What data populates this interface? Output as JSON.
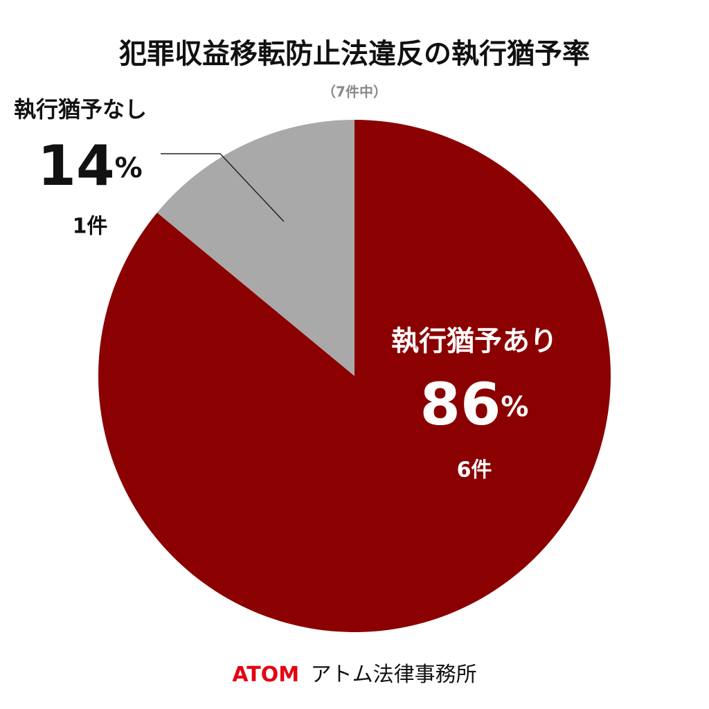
{
  "chart_data": {
    "type": "pie",
    "title": "犯罪収益移転防止法違反の執行猶予率",
    "subtitle": "（7件中）",
    "categories": [
      "執行猶予あり",
      "執行猶予なし"
    ],
    "values": [
      86,
      14
    ],
    "unit": "%",
    "count_labels": [
      "6件",
      "1件"
    ],
    "colors": [
      "#8b0000",
      "#a9a9a9"
    ],
    "footer_logo": "ATOM",
    "footer_name": "アトム法律事務所"
  }
}
